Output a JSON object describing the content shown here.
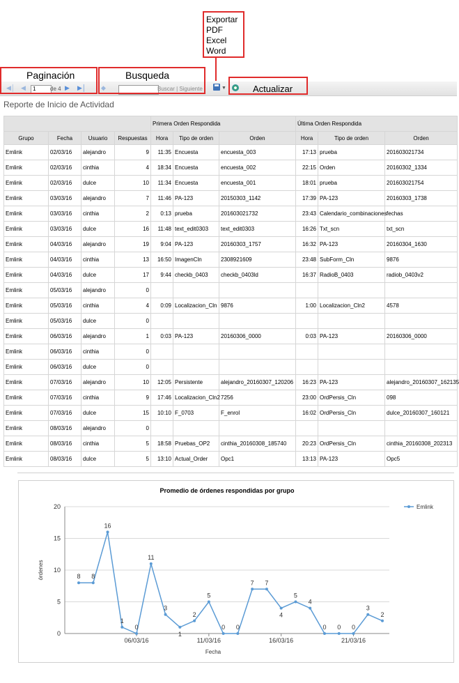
{
  "callouts": {
    "export": [
      "Exportar",
      "PDF",
      "Excel",
      "Word"
    ],
    "pagination": "Paginación",
    "search": "Busqueda",
    "refresh": "Actualizar"
  },
  "toolbar": {
    "page_value": "1",
    "page_of": "de 4",
    "search_value": "",
    "search_links": "Buscar | Siguiente"
  },
  "report_title": "Reporte de Inicio de Actividad",
  "table": {
    "group_headers": {
      "first": "Primera Orden Respondida",
      "last": "Última Orden Respondida"
    },
    "columns": [
      "Grupo",
      "Fecha",
      "Usuario",
      "Respuestas",
      "Hora",
      "Tipo de orden",
      "Orden",
      "Hora",
      "Tipo de orden",
      "Orden"
    ],
    "rows": [
      [
        "Emlink",
        "02/03/16",
        "alejandro",
        "9",
        "11:35",
        "Encuesta",
        "encuesta_003",
        "17:13",
        "prueba",
        "201603021734"
      ],
      [
        "Emlink",
        "02/03/16",
        "cinthia",
        "4",
        "18:34",
        "Encuesta",
        "encuesta_002",
        "22:15",
        "Orden",
        "20160302_1334"
      ],
      [
        "Emlink",
        "02/03/16",
        "dulce",
        "10",
        "11:34",
        "Encuesta",
        "encuesta_001",
        "18:01",
        "prueba",
        "201603021754"
      ],
      [
        "Emlink",
        "03/03/16",
        "alejandro",
        "7",
        "11:46",
        "PA-123",
        "20150303_1142",
        "17:39",
        "PA-123",
        "20160303_1738"
      ],
      [
        "Emlink",
        "03/03/16",
        "cinthia",
        "2",
        "0:13",
        "prueba",
        "201603021732",
        "23:43",
        "Calendario_combinaciones",
        "fechas"
      ],
      [
        "Emlink",
        "03/03/16",
        "dulce",
        "16",
        "11:48",
        "text_edit0303",
        "text_edit0303",
        "16:26",
        "Txt_scn",
        "txt_scn"
      ],
      [
        "Emlink",
        "04/03/16",
        "alejandro",
        "19",
        "9:04",
        "PA-123",
        "20160303_1757",
        "16:32",
        "PA-123",
        "20160304_1630"
      ],
      [
        "Emlink",
        "04/03/16",
        "cinthia",
        "13",
        "16:50",
        "ImagenCln",
        "2308921609",
        "23:48",
        "SubForm_Cln",
        "9876"
      ],
      [
        "Emlink",
        "04/03/16",
        "dulce",
        "17",
        "9:44",
        "checkb_0403",
        "checkb_0403ld",
        "16:37",
        "RadioB_0403",
        "radiob_0403v2"
      ],
      [
        "Emlink",
        "05/03/16",
        "alejandro",
        "0",
        "",
        "",
        "",
        "",
        "",
        ""
      ],
      [
        "Emlink",
        "05/03/16",
        "cinthia",
        "4",
        "0:09",
        "Localizacion_Cln",
        "9876",
        "1:00",
        "Localizacion_Cln2",
        "4578"
      ],
      [
        "Emlink",
        "05/03/16",
        "dulce",
        "0",
        "",
        "",
        "",
        "",
        "",
        ""
      ],
      [
        "Emlink",
        "06/03/16",
        "alejandro",
        "1",
        "0:03",
        "PA-123",
        "20160306_0000",
        "0:03",
        "PA-123",
        "20160306_0000"
      ],
      [
        "Emlink",
        "06/03/16",
        "cinthia",
        "0",
        "",
        "",
        "",
        "",
        "",
        ""
      ],
      [
        "Emlink",
        "06/03/16",
        "dulce",
        "0",
        "",
        "",
        "",
        "",
        "",
        ""
      ],
      [
        "Emlink",
        "07/03/16",
        "alejandro",
        "10",
        "12:05",
        "Persistente",
        "alejandro_20160307_120206",
        "16:23",
        "PA-123",
        "alejandro_20160307_162135"
      ],
      [
        "Emlink",
        "07/03/16",
        "cinthia",
        "9",
        "17:46",
        "Localizacion_Cln2",
        "7256",
        "23:00",
        "OrdPersis_Cln",
        "098"
      ],
      [
        "Emlink",
        "07/03/16",
        "dulce",
        "15",
        "10:10",
        "F_0703",
        "F_enrol",
        "16:02",
        "OrdPersis_Cln",
        "dulce_20160307_160121"
      ],
      [
        "Emlink",
        "08/03/16",
        "alejandro",
        "0",
        "",
        "",
        "",
        "",
        "",
        ""
      ],
      [
        "Emlink",
        "08/03/16",
        "cinthia",
        "5",
        "18:58",
        "Pruebas_OP2",
        "cinthia_20160308_185740",
        "20:23",
        "OrdPersis_Cln",
        "cinthia_20160308_202313"
      ],
      [
        "Emlink",
        "08/03/16",
        "dulce",
        "5",
        "13:10",
        "Actual_Order",
        "Opc1",
        "13:13",
        "PA-123",
        "Opc5"
      ]
    ]
  },
  "chart_data": {
    "type": "line",
    "title": "Promedio de órdenes respondidas por grupo",
    "xlabel": "Fecha",
    "ylabel": "órdenes",
    "ylim": [
      0,
      20
    ],
    "yticks": [
      0,
      5,
      10,
      15,
      20
    ],
    "x_tick_labels": [
      "06/03/16",
      "11/03/16",
      "16/03/16",
      "21/03/16"
    ],
    "x_tick_day_index": [
      4,
      9,
      14,
      19
    ],
    "legend_position": "top-right",
    "grid": true,
    "series": [
      {
        "name": "Emlink",
        "color": "#5b9bd5",
        "values": [
          8,
          8,
          16,
          1,
          0,
          11,
          3,
          1,
          2,
          5,
          0,
          0,
          7,
          7,
          4,
          5,
          4,
          0,
          0,
          0,
          3,
          2
        ]
      }
    ]
  }
}
